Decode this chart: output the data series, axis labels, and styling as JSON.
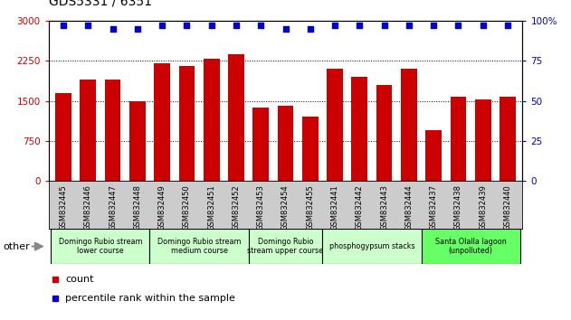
{
  "title": "GDS5331 / 6351",
  "samples": [
    "GSM832445",
    "GSM832446",
    "GSM832447",
    "GSM832448",
    "GSM832449",
    "GSM832450",
    "GSM832451",
    "GSM832452",
    "GSM832453",
    "GSM832454",
    "GSM832455",
    "GSM832441",
    "GSM832442",
    "GSM832443",
    "GSM832444",
    "GSM832437",
    "GSM832438",
    "GSM832439",
    "GSM832440"
  ],
  "counts": [
    1650,
    1900,
    1900,
    1500,
    2200,
    2150,
    2280,
    2380,
    1380,
    1400,
    1200,
    2100,
    1950,
    1800,
    2100,
    950,
    1580,
    1530,
    1580
  ],
  "percentiles": [
    97,
    97,
    95,
    95,
    97,
    97,
    97,
    97,
    97,
    95,
    95,
    97,
    97,
    97,
    97,
    97,
    97,
    97,
    97
  ],
  "bar_color": "#cc0000",
  "dot_color": "#0000cc",
  "ylim_left": [
    0,
    3000
  ],
  "ylim_right": [
    0,
    100
  ],
  "yticks_left": [
    0,
    750,
    1500,
    2250,
    3000
  ],
  "yticks_right": [
    0,
    25,
    50,
    75,
    100
  ],
  "groups": [
    {
      "label": "Domingo Rubio stream\nlower course",
      "start": 0,
      "end": 3,
      "color": "#ccffcc"
    },
    {
      "label": "Domingo Rubio stream\nmedium course",
      "start": 4,
      "end": 7,
      "color": "#ccffcc"
    },
    {
      "label": "Domingo Rubio\nstream upper course",
      "start": 8,
      "end": 10,
      "color": "#ccffcc"
    },
    {
      "label": "phosphogypsum stacks",
      "start": 11,
      "end": 14,
      "color": "#ccffcc"
    },
    {
      "label": "Santa Olalla lagoon\n(unpolluted)",
      "start": 15,
      "end": 18,
      "color": "#66ff66"
    }
  ],
  "other_label": "other",
  "legend_count_label": "count",
  "legend_pct_label": "percentile rank within the sample",
  "background_color": "#ffffff",
  "tick_label_color": "#cc0000",
  "right_tick_color": "#0000cc",
  "xtick_bg_color": "#cccccc"
}
